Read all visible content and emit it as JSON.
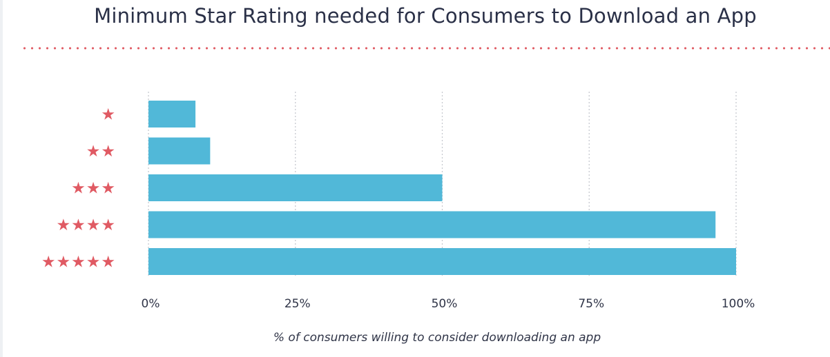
{
  "chart_data": {
    "type": "bar",
    "orientation": "horizontal",
    "title": "Minimum Star Rating needed for Consumers to Download an App",
    "xlabel": "% of consumers willing to consider downloading an app",
    "ylabel": "",
    "categories": [
      "★",
      "★★",
      "★★★",
      "★★★★",
      "★★★★★"
    ],
    "values": [
      8,
      10.5,
      50,
      96.5,
      100
    ],
    "xlim": [
      0,
      100
    ],
    "xticks": [
      0,
      25,
      50,
      75,
      100
    ],
    "xtick_labels": [
      "0%",
      "25%",
      "50%",
      "75%",
      "100%"
    ],
    "grid": "vertical dotted",
    "legend": "none",
    "colors": {
      "bar": "#51b8d8",
      "stars": "#e05a63",
      "title": "#2a3047",
      "text": "#2f3447",
      "grid": "#c7c9cf",
      "divider": "#e05a63"
    }
  }
}
